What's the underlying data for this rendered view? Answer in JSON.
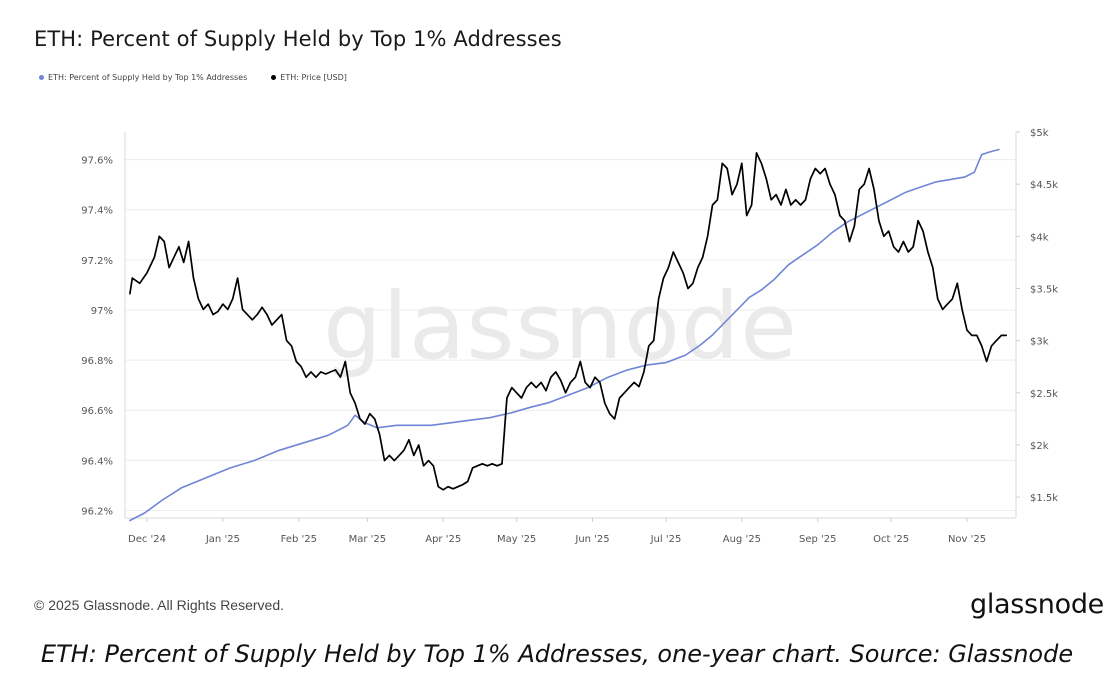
{
  "title": "ETH: Percent of Supply Held by Top 1% Addresses",
  "watermark": "glassnode",
  "copyright": "© 2025 Glassnode. All Rights Reserved.",
  "logo": "glassnode",
  "caption": "ETH: Percent of Supply Held by Top 1% Addresses, one-year chart. Source: Glassnode",
  "colors": {
    "supply": "#6f86d6",
    "price": "#000000"
  },
  "chart_data": {
    "type": "line",
    "legend": [
      {
        "name": "ETH: Percent of Supply Held by Top 1% Addresses",
        "color": "#6f86d6"
      },
      {
        "name": "ETH: Price [USD]",
        "color": "#000000"
      }
    ],
    "x_ticks": [
      "Dec '24",
      "Jan '25",
      "Feb '25",
      "Mar '25",
      "Apr '25",
      "May '25",
      "Jun '25",
      "Jul '25",
      "Aug '25",
      "Sep '25",
      "Oct '25",
      "Nov '25"
    ],
    "y_left_ticks": [
      "96.2%",
      "96.4%",
      "96.6%",
      "96.8%",
      "97%",
      "97.2%",
      "97.4%",
      "97.6%"
    ],
    "y_left_values": [
      96.2,
      96.4,
      96.6,
      96.8,
      97.0,
      97.2,
      97.4,
      97.6
    ],
    "y_left_range": [
      96.17,
      97.71
    ],
    "y_right_ticks": [
      "$1.5k",
      "$2k",
      "$2.5k",
      "$3k",
      "$3.5k",
      "$4k",
      "$4.5k",
      "$5k"
    ],
    "y_right_values": [
      1500,
      2000,
      2500,
      3000,
      3500,
      4000,
      4500,
      5000
    ],
    "y_right_range": [
      1300,
      5000
    ],
    "x_range_days": [
      -3,
      361
    ],
    "series": [
      {
        "name": "ETH: Percent of Supply Held by Top 1% Addresses",
        "axis": "left",
        "color": "#6f86d6",
        "points": [
          [
            -1,
            96.16
          ],
          [
            5,
            96.19
          ],
          [
            12,
            96.24
          ],
          [
            20,
            96.29
          ],
          [
            30,
            96.33
          ],
          [
            40,
            96.37
          ],
          [
            50,
            96.4
          ],
          [
            60,
            96.44
          ],
          [
            70,
            96.47
          ],
          [
            80,
            96.5
          ],
          [
            88,
            96.54
          ],
          [
            91,
            96.58
          ],
          [
            95,
            96.55
          ],
          [
            100,
            96.53
          ],
          [
            108,
            96.54
          ],
          [
            115,
            96.54
          ],
          [
            122,
            96.54
          ],
          [
            130,
            96.55
          ],
          [
            138,
            96.56
          ],
          [
            146,
            96.57
          ],
          [
            155,
            96.59
          ],
          [
            162,
            96.61
          ],
          [
            170,
            96.63
          ],
          [
            178,
            96.66
          ],
          [
            186,
            96.69
          ],
          [
            194,
            96.73
          ],
          [
            202,
            96.76
          ],
          [
            210,
            96.78
          ],
          [
            218,
            96.79
          ],
          [
            226,
            96.82
          ],
          [
            232,
            96.86
          ],
          [
            237,
            96.9
          ],
          [
            242,
            96.95
          ],
          [
            247,
            97.0
          ],
          [
            252,
            97.05
          ],
          [
            257,
            97.08
          ],
          [
            262,
            97.12
          ],
          [
            268,
            97.18
          ],
          [
            274,
            97.22
          ],
          [
            280,
            97.26
          ],
          [
            286,
            97.31
          ],
          [
            292,
            97.35
          ],
          [
            298,
            97.38
          ],
          [
            304,
            97.41
          ],
          [
            310,
            97.44
          ],
          [
            316,
            97.47
          ],
          [
            322,
            97.49
          ],
          [
            328,
            97.51
          ],
          [
            334,
            97.52
          ],
          [
            340,
            97.53
          ],
          [
            344,
            97.55
          ],
          [
            347,
            97.62
          ],
          [
            350,
            97.63
          ],
          [
            354,
            97.64
          ]
        ]
      },
      {
        "name": "ETH: Price [USD]",
        "axis": "right",
        "color": "#000000",
        "points": [
          [
            -1,
            3450
          ],
          [
            0,
            3600
          ],
          [
            3,
            3550
          ],
          [
            6,
            3650
          ],
          [
            9,
            3800
          ],
          [
            11,
            4000
          ],
          [
            13,
            3950
          ],
          [
            15,
            3700
          ],
          [
            17,
            3800
          ],
          [
            19,
            3900
          ],
          [
            21,
            3750
          ],
          [
            23,
            3950
          ],
          [
            25,
            3600
          ],
          [
            27,
            3400
          ],
          [
            29,
            3300
          ],
          [
            31,
            3350
          ],
          [
            33,
            3250
          ],
          [
            35,
            3280
          ],
          [
            37,
            3350
          ],
          [
            39,
            3300
          ],
          [
            41,
            3400
          ],
          [
            43,
            3600
          ],
          [
            45,
            3300
          ],
          [
            47,
            3250
          ],
          [
            49,
            3200
          ],
          [
            51,
            3250
          ],
          [
            53,
            3320
          ],
          [
            55,
            3250
          ],
          [
            57,
            3150
          ],
          [
            59,
            3200
          ],
          [
            61,
            3250
          ],
          [
            63,
            3000
          ],
          [
            65,
            2950
          ],
          [
            67,
            2800
          ],
          [
            69,
            2750
          ],
          [
            71,
            2650
          ],
          [
            73,
            2700
          ],
          [
            75,
            2650
          ],
          [
            77,
            2700
          ],
          [
            79,
            2680
          ],
          [
            81,
            2700
          ],
          [
            83,
            2720
          ],
          [
            85,
            2650
          ],
          [
            87,
            2800
          ],
          [
            89,
            2500
          ],
          [
            91,
            2400
          ],
          [
            93,
            2250
          ],
          [
            95,
            2200
          ],
          [
            97,
            2300
          ],
          [
            99,
            2250
          ],
          [
            101,
            2100
          ],
          [
            103,
            1850
          ],
          [
            105,
            1900
          ],
          [
            107,
            1850
          ],
          [
            109,
            1900
          ],
          [
            111,
            1950
          ],
          [
            113,
            2050
          ],
          [
            115,
            1900
          ],
          [
            117,
            2000
          ],
          [
            119,
            1800
          ],
          [
            121,
            1850
          ],
          [
            123,
            1800
          ],
          [
            125,
            1600
          ],
          [
            127,
            1570
          ],
          [
            129,
            1600
          ],
          [
            131,
            1580
          ],
          [
            133,
            1600
          ],
          [
            135,
            1620
          ],
          [
            137,
            1650
          ],
          [
            139,
            1780
          ],
          [
            141,
            1800
          ],
          [
            143,
            1820
          ],
          [
            145,
            1800
          ],
          [
            147,
            1820
          ],
          [
            149,
            1800
          ],
          [
            151,
            1820
          ],
          [
            153,
            2450
          ],
          [
            155,
            2550
          ],
          [
            157,
            2500
          ],
          [
            159,
            2450
          ],
          [
            161,
            2550
          ],
          [
            163,
            2600
          ],
          [
            165,
            2550
          ],
          [
            167,
            2600
          ],
          [
            169,
            2520
          ],
          [
            171,
            2650
          ],
          [
            173,
            2700
          ],
          [
            175,
            2620
          ],
          [
            177,
            2500
          ],
          [
            179,
            2600
          ],
          [
            181,
            2650
          ],
          [
            183,
            2800
          ],
          [
            185,
            2600
          ],
          [
            187,
            2550
          ],
          [
            189,
            2650
          ],
          [
            191,
            2600
          ],
          [
            193,
            2400
          ],
          [
            195,
            2300
          ],
          [
            197,
            2250
          ],
          [
            199,
            2450
          ],
          [
            201,
            2500
          ],
          [
            203,
            2550
          ],
          [
            205,
            2600
          ],
          [
            207,
            2560
          ],
          [
            209,
            2700
          ],
          [
            211,
            2950
          ],
          [
            213,
            3000
          ],
          [
            215,
            3400
          ],
          [
            217,
            3600
          ],
          [
            219,
            3700
          ],
          [
            221,
            3850
          ],
          [
            223,
            3750
          ],
          [
            225,
            3650
          ],
          [
            227,
            3500
          ],
          [
            229,
            3550
          ],
          [
            231,
            3700
          ],
          [
            233,
            3800
          ],
          [
            235,
            4000
          ],
          [
            237,
            4300
          ],
          [
            239,
            4350
          ],
          [
            241,
            4700
          ],
          [
            243,
            4650
          ],
          [
            245,
            4400
          ],
          [
            247,
            4500
          ],
          [
            249,
            4700
          ],
          [
            251,
            4200
          ],
          [
            253,
            4300
          ],
          [
            255,
            4800
          ],
          [
            257,
            4700
          ],
          [
            259,
            4550
          ],
          [
            261,
            4350
          ],
          [
            263,
            4400
          ],
          [
            265,
            4300
          ],
          [
            267,
            4450
          ],
          [
            269,
            4300
          ],
          [
            271,
            4350
          ],
          [
            273,
            4300
          ],
          [
            275,
            4350
          ],
          [
            277,
            4550
          ],
          [
            279,
            4650
          ],
          [
            281,
            4600
          ],
          [
            283,
            4650
          ],
          [
            285,
            4500
          ],
          [
            287,
            4400
          ],
          [
            289,
            4200
          ],
          [
            291,
            4150
          ],
          [
            293,
            3950
          ],
          [
            295,
            4100
          ],
          [
            297,
            4450
          ],
          [
            299,
            4500
          ],
          [
            301,
            4650
          ],
          [
            303,
            4450
          ],
          [
            305,
            4150
          ],
          [
            307,
            4000
          ],
          [
            309,
            4050
          ],
          [
            311,
            3900
          ],
          [
            313,
            3850
          ],
          [
            315,
            3950
          ],
          [
            317,
            3850
          ],
          [
            319,
            3900
          ],
          [
            321,
            4150
          ],
          [
            323,
            4050
          ],
          [
            325,
            3850
          ],
          [
            327,
            3700
          ],
          [
            329,
            3400
          ],
          [
            331,
            3300
          ],
          [
            333,
            3350
          ],
          [
            335,
            3400
          ],
          [
            337,
            3550
          ],
          [
            339,
            3300
          ],
          [
            341,
            3100
          ],
          [
            343,
            3050
          ],
          [
            345,
            3050
          ],
          [
            347,
            2950
          ],
          [
            349,
            2800
          ],
          [
            351,
            2950
          ],
          [
            353,
            3000
          ],
          [
            355,
            3050
          ],
          [
            357,
            3050
          ]
        ]
      }
    ]
  }
}
